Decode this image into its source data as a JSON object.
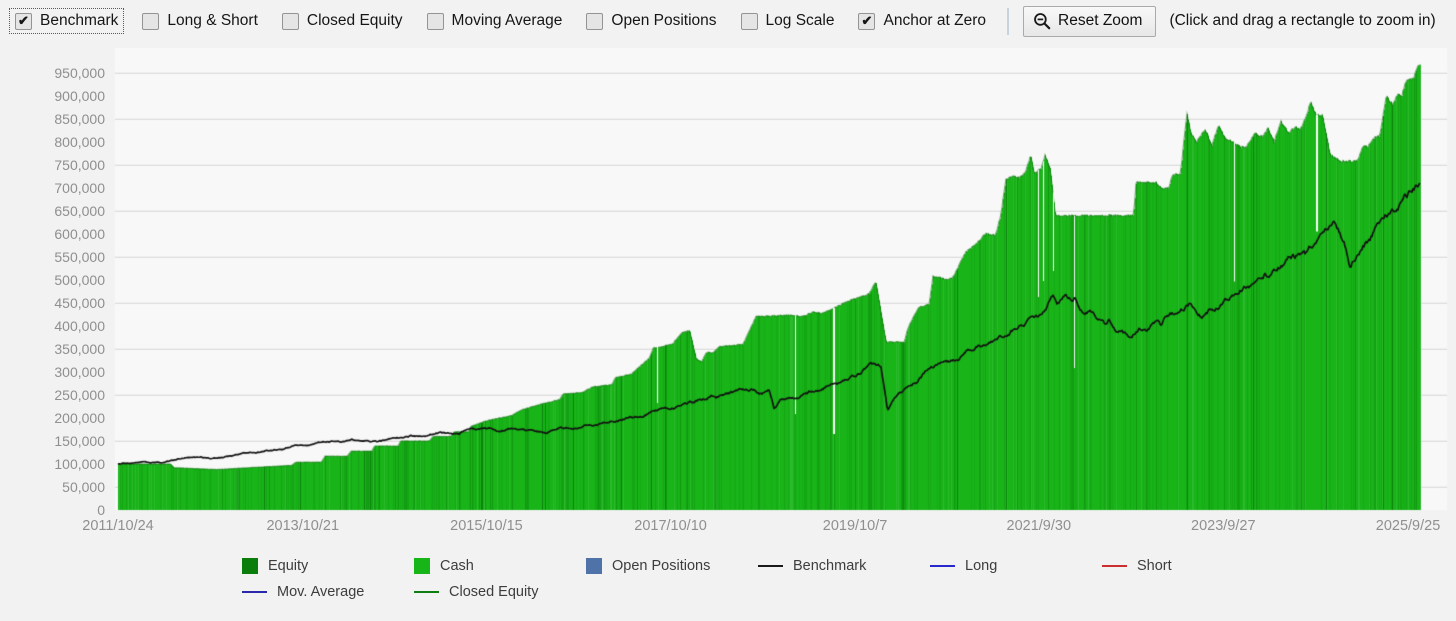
{
  "toolbar": {
    "checkboxes": [
      {
        "label": "Benchmark",
        "checked": true,
        "focused": true
      },
      {
        "label": "Long & Short",
        "checked": false,
        "focused": false
      },
      {
        "label": "Closed Equity",
        "checked": false,
        "focused": false
      },
      {
        "label": "Moving Average",
        "checked": false,
        "focused": false
      },
      {
        "label": "Open Positions",
        "checked": false,
        "focused": false
      },
      {
        "label": "Log Scale",
        "checked": false,
        "focused": false
      },
      {
        "label": "Anchor at Zero",
        "checked": true,
        "focused": false
      }
    ],
    "reset_zoom_label": "Reset Zoom",
    "hint": "(Click and drag a rectangle to zoom in)"
  },
  "legend": {
    "items": [
      {
        "label": "Equity",
        "swatch": "box",
        "color": "#0a7d0a"
      },
      {
        "label": "Cash",
        "swatch": "box",
        "color": "#17b517"
      },
      {
        "label": "Open Positions",
        "swatch": "box",
        "color": "#4f72a8"
      },
      {
        "label": "Benchmark",
        "swatch": "line",
        "color": "#1a1a1a"
      },
      {
        "label": "Long",
        "swatch": "line",
        "color": "#2828cc"
      },
      {
        "label": "Short",
        "swatch": "line",
        "color": "#cc2f2f"
      },
      {
        "label": "Mov. Average",
        "swatch": "line",
        "color": "#2828a8"
      },
      {
        "label": "Closed Equity",
        "swatch": "line",
        "color": "#0f7d0f"
      }
    ]
  },
  "colors": {
    "page_bg": "#f2f2f2",
    "plot_bg": "#f8f8f8",
    "gridline": "#dcdcdc",
    "cash_green": "#18b418",
    "stripe_green_dark": "#0c7a0c",
    "benchmark_line": "#121212",
    "tick_text": "#8f8f8f"
  },
  "chart_data": {
    "type": "area",
    "title": "",
    "xlabel": "",
    "ylabel": "",
    "x_domain": [
      "2011/10/24",
      "2025/10/15"
    ],
    "y_range": [
      0,
      950000
    ],
    "y_tick_step": 50000,
    "grid": "horizontal",
    "grid_step": 100000,
    "grid_offset": 50000,
    "legend_position": "bottom",
    "y_ticks": [
      "950,000",
      "900,000",
      "850,000",
      "800,000",
      "750,000",
      "700,000",
      "650,000",
      "600,000",
      "550,000",
      "500,000",
      "450,000",
      "400,000",
      "350,000",
      "300,000",
      "250,000",
      "200,000",
      "150,000",
      "100,000",
      "50,000",
      "0"
    ],
    "x_ticks": [
      {
        "label": "2011/10/24",
        "t": 0.0
      },
      {
        "label": "2013/10/21",
        "t": 0.1419
      },
      {
        "label": "2015/10/15",
        "t": 0.283
      },
      {
        "label": "2017/10/10",
        "t": 0.4244
      },
      {
        "label": "2019/10/7",
        "t": 0.5661
      },
      {
        "label": "2021/9/30",
        "t": 0.7072
      },
      {
        "label": "2023/9/27",
        "t": 0.8489
      },
      {
        "label": "2025/9/25",
        "t": 0.9908
      }
    ],
    "series": [
      {
        "name": "Cash",
        "style": "area",
        "color": "#18b418",
        "points": [
          [
            0.0,
            100000
          ],
          [
            0.04,
            100000
          ],
          [
            0.043,
            92000
          ],
          [
            0.076,
            88000
          ],
          [
            0.107,
            93000
          ],
          [
            0.133,
            97000
          ],
          [
            0.137,
            104000
          ],
          [
            0.156,
            104000
          ],
          [
            0.159,
            117000
          ],
          [
            0.176,
            117000
          ],
          [
            0.179,
            128000
          ],
          [
            0.195,
            128000
          ],
          [
            0.197,
            139000
          ],
          [
            0.215,
            139000
          ],
          [
            0.217,
            150000
          ],
          [
            0.239,
            150000
          ],
          [
            0.242,
            160000
          ],
          [
            0.256,
            160000
          ],
          [
            0.258,
            170000
          ],
          [
            0.269,
            170000
          ],
          [
            0.271,
            182000
          ],
          [
            0.284,
            195000
          ],
          [
            0.302,
            205000
          ],
          [
            0.31,
            218000
          ],
          [
            0.325,
            230000
          ],
          [
            0.339,
            240000
          ],
          [
            0.342,
            252000
          ],
          [
            0.356,
            255000
          ],
          [
            0.365,
            268000
          ],
          [
            0.379,
            272000
          ],
          [
            0.382,
            288000
          ],
          [
            0.394,
            295000
          ],
          [
            0.408,
            330000
          ],
          [
            0.411,
            352000
          ],
          [
            0.417,
            355000
          ],
          [
            0.426,
            362000
          ],
          [
            0.433,
            385000
          ],
          [
            0.439,
            390000
          ],
          [
            0.444,
            330000
          ],
          [
            0.448,
            322000
          ],
          [
            0.452,
            342000
          ],
          [
            0.457,
            342000
          ],
          [
            0.462,
            355000
          ],
          [
            0.48,
            360000
          ],
          [
            0.485,
            390000
          ],
          [
            0.49,
            420000
          ],
          [
            0.517,
            424000
          ],
          [
            0.525,
            420000
          ],
          [
            0.534,
            430000
          ],
          [
            0.54,
            428000
          ],
          [
            0.551,
            440000
          ],
          [
            0.561,
            455000
          ],
          [
            0.569,
            462000
          ],
          [
            0.577,
            470000
          ],
          [
            0.582,
            497000
          ],
          [
            0.586,
            430000
          ],
          [
            0.59,
            365000
          ],
          [
            0.604,
            365000
          ],
          [
            0.606,
            390000
          ],
          [
            0.61,
            415000
          ],
          [
            0.615,
            440000
          ],
          [
            0.623,
            448000
          ],
          [
            0.626,
            508000
          ],
          [
            0.632,
            505000
          ],
          [
            0.637,
            500000
          ],
          [
            0.641,
            505000
          ],
          [
            0.651,
            560000
          ],
          [
            0.659,
            578000
          ],
          [
            0.666,
            600000
          ],
          [
            0.674,
            598000
          ],
          [
            0.678,
            640000
          ],
          [
            0.682,
            720000
          ],
          [
            0.687,
            725000
          ],
          [
            0.692,
            722000
          ],
          [
            0.697,
            735000
          ],
          [
            0.701,
            770000
          ],
          [
            0.704,
            730000
          ],
          [
            0.709,
            742000
          ],
          [
            0.712,
            770000
          ],
          [
            0.716,
            742000
          ],
          [
            0.72,
            640000
          ],
          [
            0.78,
            640000
          ],
          [
            0.782,
            712000
          ],
          [
            0.797,
            712000
          ],
          [
            0.801,
            700000
          ],
          [
            0.807,
            700000
          ],
          [
            0.81,
            728000
          ],
          [
            0.816,
            730000
          ],
          [
            0.821,
            862000
          ],
          [
            0.824,
            820000
          ],
          [
            0.828,
            800000
          ],
          [
            0.835,
            828000
          ],
          [
            0.84,
            790000
          ],
          [
            0.845,
            835000
          ],
          [
            0.85,
            810000
          ],
          [
            0.856,
            800000
          ],
          [
            0.862,
            788000
          ],
          [
            0.867,
            790000
          ],
          [
            0.873,
            820000
          ],
          [
            0.879,
            810000
          ],
          [
            0.883,
            830000
          ],
          [
            0.888,
            800000
          ],
          [
            0.893,
            845000
          ],
          [
            0.899,
            820000
          ],
          [
            0.904,
            832000
          ],
          [
            0.908,
            828000
          ],
          [
            0.912,
            850000
          ],
          [
            0.916,
            888000
          ],
          [
            0.92,
            858000
          ],
          [
            0.925,
            858000
          ],
          [
            0.931,
            772000
          ],
          [
            0.939,
            758000
          ],
          [
            0.952,
            758000
          ],
          [
            0.956,
            790000
          ],
          [
            0.96,
            790000
          ],
          [
            0.965,
            810000
          ],
          [
            0.969,
            812000
          ],
          [
            0.974,
            900000
          ],
          [
            0.979,
            880000
          ],
          [
            0.983,
            905000
          ],
          [
            0.986,
            900000
          ],
          [
            0.989,
            932000
          ],
          [
            0.992,
            935000
          ],
          [
            0.995,
            938000
          ],
          [
            0.998,
            965000
          ],
          [
            1.0,
            968000
          ]
        ]
      },
      {
        "name": "Benchmark",
        "style": "line",
        "color": "#121212",
        "points": [
          [
            0.0,
            100000
          ],
          [
            0.018,
            106000
          ],
          [
            0.034,
            103000
          ],
          [
            0.053,
            115000
          ],
          [
            0.076,
            112000
          ],
          [
            0.095,
            122000
          ],
          [
            0.118,
            130000
          ],
          [
            0.141,
            140000
          ],
          [
            0.164,
            147000
          ],
          [
            0.187,
            152000
          ],
          [
            0.202,
            150000
          ],
          [
            0.218,
            158000
          ],
          [
            0.233,
            163000
          ],
          [
            0.248,
            168000
          ],
          [
            0.26,
            165000
          ],
          [
            0.271,
            173000
          ],
          [
            0.284,
            176000
          ],
          [
            0.294,
            172000
          ],
          [
            0.306,
            178000
          ],
          [
            0.318,
            170000
          ],
          [
            0.329,
            168000
          ],
          [
            0.34,
            176000
          ],
          [
            0.352,
            180000
          ],
          [
            0.363,
            186000
          ],
          [
            0.375,
            190000
          ],
          [
            0.386,
            196000
          ],
          [
            0.402,
            205000
          ],
          [
            0.417,
            215000
          ],
          [
            0.433,
            228000
          ],
          [
            0.448,
            240000
          ],
          [
            0.456,
            252000
          ],
          [
            0.459,
            246000
          ],
          [
            0.467,
            250000
          ],
          [
            0.479,
            258000
          ],
          [
            0.488,
            265000
          ],
          [
            0.494,
            255000
          ],
          [
            0.5,
            258000
          ],
          [
            0.504,
            218000
          ],
          [
            0.509,
            240000
          ],
          [
            0.525,
            252000
          ],
          [
            0.536,
            262000
          ],
          [
            0.548,
            270000
          ],
          [
            0.559,
            280000
          ],
          [
            0.569,
            292000
          ],
          [
            0.578,
            320000
          ],
          [
            0.586,
            310000
          ],
          [
            0.591,
            217000
          ],
          [
            0.597,
            248000
          ],
          [
            0.605,
            265000
          ],
          [
            0.613,
            278000
          ],
          [
            0.62,
            300000
          ],
          [
            0.628,
            315000
          ],
          [
            0.636,
            322000
          ],
          [
            0.643,
            330000
          ],
          [
            0.651,
            345000
          ],
          [
            0.659,
            355000
          ],
          [
            0.666,
            362000
          ],
          [
            0.674,
            372000
          ],
          [
            0.682,
            385000
          ],
          [
            0.689,
            398000
          ],
          [
            0.697,
            408000
          ],
          [
            0.705,
            418000
          ],
          [
            0.71,
            428000
          ],
          [
            0.715,
            452000
          ],
          [
            0.718,
            460000
          ],
          [
            0.721,
            448000
          ],
          [
            0.724,
            455000
          ],
          [
            0.728,
            462000
          ],
          [
            0.732,
            452000
          ],
          [
            0.735,
            458000
          ],
          [
            0.739,
            440000
          ],
          [
            0.743,
            430000
          ],
          [
            0.747,
            438000
          ],
          [
            0.751,
            420000
          ],
          [
            0.755,
            408000
          ],
          [
            0.758,
            398000
          ],
          [
            0.761,
            412000
          ],
          [
            0.764,
            395000
          ],
          [
            0.768,
            382000
          ],
          [
            0.771,
            392000
          ],
          [
            0.775,
            378000
          ],
          [
            0.778,
            372000
          ],
          [
            0.781,
            385000
          ],
          [
            0.785,
            395000
          ],
          [
            0.789,
            390000
          ],
          [
            0.793,
            398000
          ],
          [
            0.797,
            408000
          ],
          [
            0.801,
            400000
          ],
          [
            0.804,
            412000
          ],
          [
            0.81,
            425000
          ],
          [
            0.814,
            432000
          ],
          [
            0.82,
            442000
          ],
          [
            0.824,
            450000
          ],
          [
            0.827,
            445000
          ],
          [
            0.831,
            432000
          ],
          [
            0.835,
            428000
          ],
          [
            0.839,
            438000
          ],
          [
            0.843,
            442000
          ],
          [
            0.848,
            450000
          ],
          [
            0.853,
            462000
          ],
          [
            0.858,
            470000
          ],
          [
            0.863,
            480000
          ],
          [
            0.87,
            492000
          ],
          [
            0.876,
            505000
          ],
          [
            0.881,
            515000
          ],
          [
            0.885,
            510000
          ],
          [
            0.89,
            522000
          ],
          [
            0.894,
            532000
          ],
          [
            0.899,
            545000
          ],
          [
            0.904,
            550000
          ],
          [
            0.908,
            560000
          ],
          [
            0.912,
            555000
          ],
          [
            0.917,
            572000
          ],
          [
            0.922,
            585000
          ],
          [
            0.927,
            600000
          ],
          [
            0.931,
            612000
          ],
          [
            0.935,
            618000
          ],
          [
            0.939,
            605000
          ],
          [
            0.943,
            572000
          ],
          [
            0.946,
            518000
          ],
          [
            0.95,
            545000
          ],
          [
            0.954,
            568000
          ],
          [
            0.958,
            580000
          ],
          [
            0.963,
            598000
          ],
          [
            0.968,
            615000
          ],
          [
            0.973,
            632000
          ],
          [
            0.979,
            648000
          ],
          [
            0.983,
            662000
          ],
          [
            0.988,
            680000
          ],
          [
            0.994,
            695000
          ],
          [
            1.0,
            712000
          ]
        ]
      }
    ]
  }
}
